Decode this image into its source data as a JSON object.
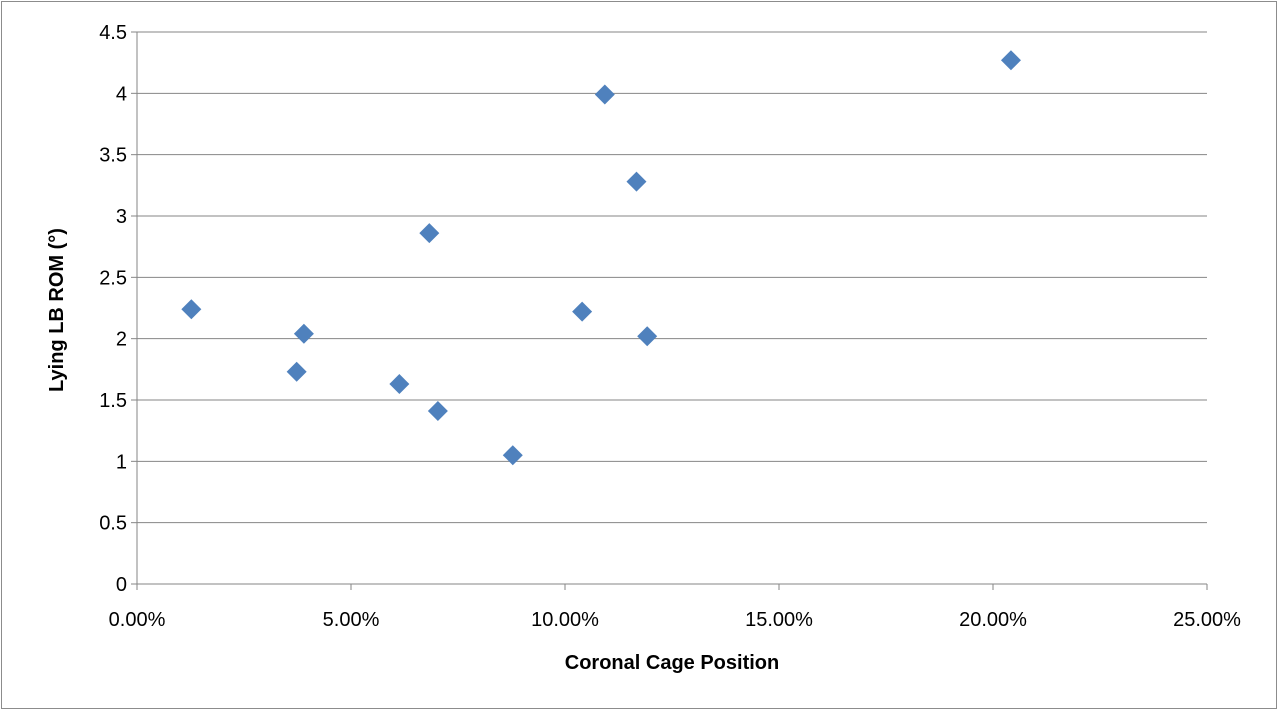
{
  "chart_data": {
    "type": "scatter",
    "title": "",
    "xlabel": "Coronal Cage Position",
    "ylabel": "Lying LB ROM (°)",
    "xlim": [
      0,
      0.25
    ],
    "ylim": [
      0,
      4.5
    ],
    "x_ticks": [
      0,
      0.05,
      0.1,
      0.15,
      0.2,
      0.25
    ],
    "x_tick_labels": [
      "0.00%",
      "5.00%",
      "10.00%",
      "15.00%",
      "20.00%",
      "25.00%"
    ],
    "y_ticks": [
      0,
      0.5,
      1,
      1.5,
      2,
      2.5,
      3,
      3.5,
      4,
      4.5
    ],
    "y_tick_labels": [
      "0",
      "0.5",
      "1",
      "1.5",
      "2",
      "2.5",
      "3",
      "3.5",
      "4",
      "4.5"
    ],
    "grid": "horizontal",
    "legend": "none",
    "marker": "diamond",
    "marker_color": "#4f81bd",
    "series": [
      {
        "points": [
          {
            "x": 0.0127,
            "y": 2.24
          },
          {
            "x": 0.0373,
            "y": 1.73
          },
          {
            "x": 0.039,
            "y": 2.04
          },
          {
            "x": 0.0613,
            "y": 1.63
          },
          {
            "x": 0.0683,
            "y": 2.86
          },
          {
            "x": 0.0703,
            "y": 1.41
          },
          {
            "x": 0.0878,
            "y": 1.05
          },
          {
            "x": 0.104,
            "y": 2.22
          },
          {
            "x": 0.1093,
            "y": 3.99
          },
          {
            "x": 0.1167,
            "y": 3.28
          },
          {
            "x": 0.1192,
            "y": 2.02
          },
          {
            "x": 0.2042,
            "y": 4.27
          }
        ]
      }
    ]
  }
}
